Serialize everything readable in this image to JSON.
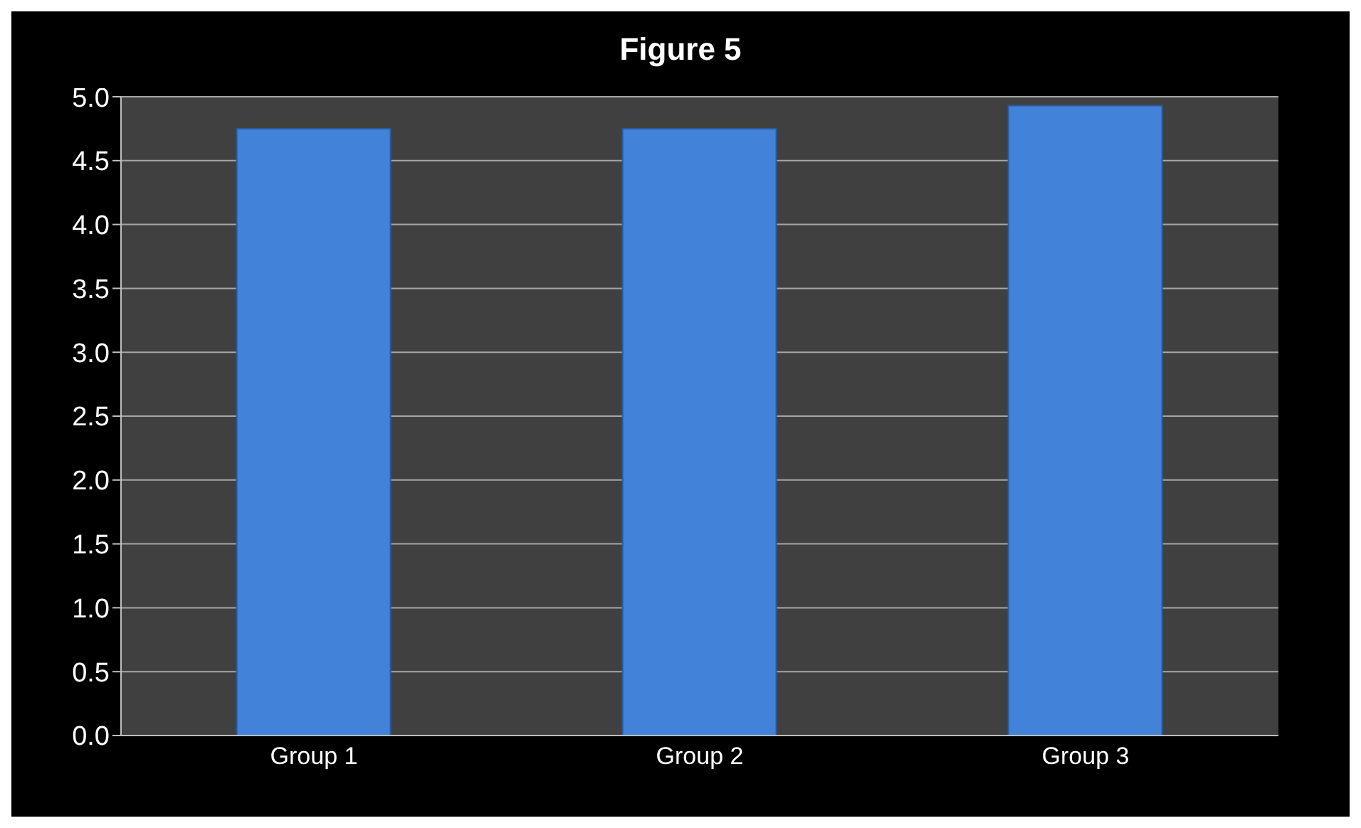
{
  "chart_data": {
    "type": "bar",
    "title": "Figure 5",
    "categories": [
      "Group 1",
      "Group 2",
      "Group 3"
    ],
    "values": [
      4.75,
      4.75,
      4.93
    ],
    "color": "#4282d8",
    "ylim": [
      0,
      5
    ],
    "yticks": [
      {
        "value": 0,
        "label": "0.0"
      },
      0.5,
      {
        "value": 1,
        "label": "1.0"
      },
      1.5,
      {
        "value": 2,
        "label": "2.0"
      },
      2.5,
      {
        "value": 3,
        "label": "3.0"
      },
      3.5,
      {
        "value": 4,
        "label": "4.0"
      },
      4.5,
      {
        "value": 5,
        "label": "5.0"
      }
    ],
    "grid": "y"
  }
}
